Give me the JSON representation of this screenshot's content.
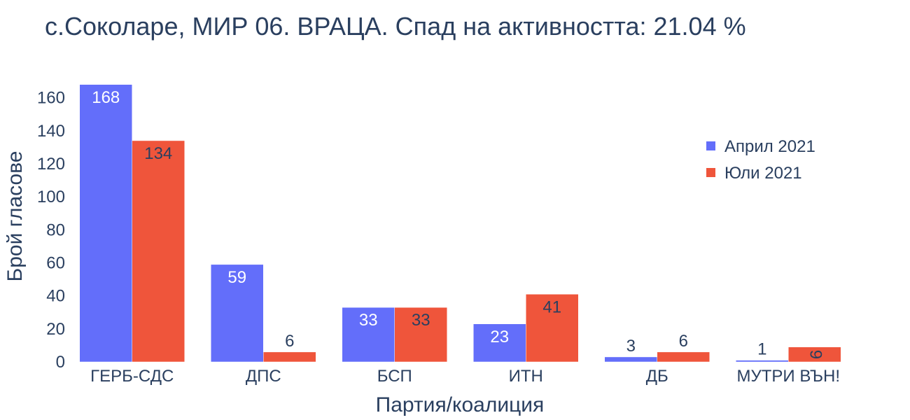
{
  "chart_data": {
    "type": "bar",
    "title": "с.Соколаре, МИР 06. ВРАЦА. Спад на активността: 21.04 %",
    "xlabel": "Партия/коалиция",
    "ylabel": "Брой гласове",
    "categories": [
      "ГЕРБ-СДС",
      "ДПС",
      "БСП",
      "ИТН",
      "ДБ",
      "МУТРИ ВЪН!"
    ],
    "series": [
      {
        "name": "Април 2021",
        "color": "#636efa",
        "values": [
          168,
          59,
          33,
          23,
          3,
          1
        ]
      },
      {
        "name": "Юли 2021",
        "color": "#ef553b",
        "values": [
          134,
          6,
          33,
          41,
          6,
          9
        ]
      }
    ],
    "ylim": [
      0,
      176.8
    ],
    "yticks": [
      0,
      20,
      40,
      60,
      80,
      100,
      120,
      140,
      160
    ],
    "grid": false,
    "legend_position": "top-right"
  }
}
